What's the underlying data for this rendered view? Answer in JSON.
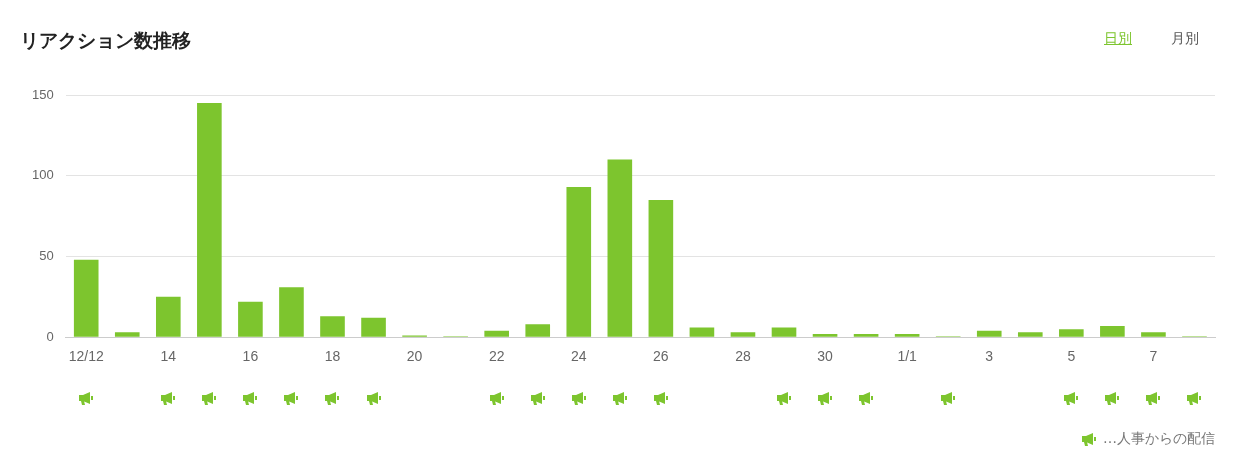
{
  "chart_data": {
    "type": "bar",
    "title": "リアクション数推移",
    "categories": [
      "12/12",
      null,
      "14",
      null,
      "16",
      null,
      "18",
      null,
      "20",
      null,
      "22",
      null,
      "24",
      null,
      "26",
      null,
      "28",
      null,
      "30",
      null,
      "1/1",
      null,
      "3",
      null,
      "5",
      null,
      "7",
      null
    ],
    "values": [
      48,
      3,
      25,
      145,
      22,
      31,
      13,
      12,
      1,
      0,
      4,
      8,
      93,
      110,
      85,
      6,
      3,
      6,
      2,
      2,
      2,
      0,
      4,
      3,
      5,
      7,
      3,
      0
    ],
    "color": "#7dc52e",
    "ylim": [
      0,
      150
    ],
    "yticks": [
      0,
      50,
      100,
      150
    ],
    "grid": "y",
    "annotations": [
      "日別",
      "月別",
      "…人事からの配信"
    ]
  }
}
